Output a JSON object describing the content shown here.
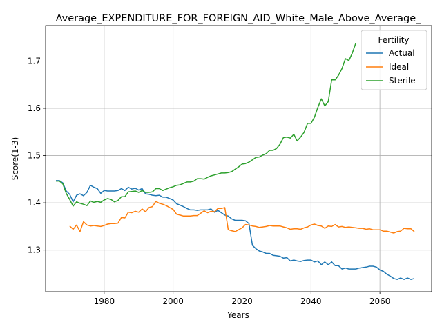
{
  "chart_data": {
    "type": "line",
    "title": "Average_EXPENDITURE_FOR_FOREIGN_AID_White_Male_Above_Average_",
    "xlabel": "Years",
    "ylabel": "Score(1-3)",
    "xlim": [
      1963,
      2075
    ],
    "ylim": [
      1.212,
      1.775
    ],
    "x_ticks": [
      1980,
      2000,
      2020,
      2040,
      2060
    ],
    "x_tick_labels": [
      "1980",
      "2000",
      "2020",
      "2040",
      "2060"
    ],
    "y_ticks": [
      1.3,
      1.4,
      1.5,
      1.6,
      1.7
    ],
    "y_tick_labels": [
      "1.3",
      "1.4",
      "1.5",
      "1.6",
      "1.7"
    ],
    "grid": true,
    "legend": {
      "title": "Fertility",
      "placement": "top-right"
    },
    "series": [
      {
        "name": "Actual",
        "color": "#1f77b4",
        "points": [
          [
            1966,
            1.447
          ],
          [
            1967,
            1.447
          ],
          [
            1968,
            1.442
          ],
          [
            1969,
            1.425
          ],
          [
            1970,
            1.418
          ],
          [
            1971,
            1.402
          ],
          [
            1972,
            1.416
          ],
          [
            1973,
            1.419
          ],
          [
            1974,
            1.415
          ],
          [
            1975,
            1.422
          ],
          [
            1976,
            1.437
          ],
          [
            1977,
            1.433
          ],
          [
            1978,
            1.43
          ],
          [
            1979,
            1.42
          ],
          [
            1980,
            1.426
          ],
          [
            1981,
            1.425
          ],
          [
            1982,
            1.425
          ],
          [
            1983,
            1.425
          ],
          [
            1984,
            1.426
          ],
          [
            1985,
            1.43
          ],
          [
            1986,
            1.426
          ],
          [
            1987,
            1.433
          ],
          [
            1988,
            1.429
          ],
          [
            1989,
            1.431
          ],
          [
            1990,
            1.427
          ],
          [
            1991,
            1.43
          ],
          [
            1992,
            1.419
          ],
          [
            1993,
            1.418
          ],
          [
            1994,
            1.416
          ],
          [
            1995,
            1.415
          ],
          [
            1996,
            1.416
          ],
          [
            1997,
            1.412
          ],
          [
            1998,
            1.412
          ],
          [
            1999,
            1.409
          ],
          [
            2000,
            1.406
          ],
          [
            2001,
            1.398
          ],
          [
            2002,
            1.395
          ],
          [
            2003,
            1.392
          ],
          [
            2004,
            1.388
          ],
          [
            2005,
            1.385
          ],
          [
            2006,
            1.385
          ],
          [
            2007,
            1.384
          ],
          [
            2008,
            1.385
          ],
          [
            2009,
            1.385
          ],
          [
            2010,
            1.385
          ],
          [
            2011,
            1.387
          ],
          [
            2012,
            1.38
          ],
          [
            2013,
            1.384
          ],
          [
            2014,
            1.379
          ],
          [
            2015,
            1.374
          ],
          [
            2016,
            1.372
          ],
          [
            2017,
            1.366
          ],
          [
            2018,
            1.363
          ],
          [
            2019,
            1.363
          ],
          [
            2020,
            1.363
          ],
          [
            2021,
            1.362
          ],
          [
            2022,
            1.356
          ],
          [
            2023,
            1.31
          ],
          [
            2024,
            1.303
          ],
          [
            2025,
            1.298
          ],
          [
            2026,
            1.296
          ],
          [
            2027,
            1.293
          ],
          [
            2028,
            1.293
          ],
          [
            2029,
            1.289
          ],
          [
            2030,
            1.288
          ],
          [
            2031,
            1.287
          ],
          [
            2032,
            1.283
          ],
          [
            2033,
            1.284
          ],
          [
            2034,
            1.277
          ],
          [
            2035,
            1.279
          ],
          [
            2036,
            1.277
          ],
          [
            2037,
            1.276
          ],
          [
            2038,
            1.278
          ],
          [
            2039,
            1.279
          ],
          [
            2040,
            1.279
          ],
          [
            2041,
            1.275
          ],
          [
            2042,
            1.277
          ],
          [
            2043,
            1.269
          ],
          [
            2044,
            1.275
          ],
          [
            2045,
            1.269
          ],
          [
            2046,
            1.275
          ],
          [
            2047,
            1.267
          ],
          [
            2048,
            1.267
          ],
          [
            2049,
            1.26
          ],
          [
            2050,
            1.262
          ],
          [
            2051,
            1.26
          ],
          [
            2052,
            1.26
          ],
          [
            2053,
            1.26
          ],
          [
            2054,
            1.262
          ],
          [
            2055,
            1.263
          ],
          [
            2056,
            1.264
          ],
          [
            2057,
            1.266
          ],
          [
            2058,
            1.266
          ],
          [
            2059,
            1.264
          ],
          [
            2060,
            1.258
          ],
          [
            2061,
            1.255
          ],
          [
            2062,
            1.249
          ],
          [
            2063,
            1.245
          ],
          [
            2064,
            1.24
          ],
          [
            2065,
            1.238
          ],
          [
            2066,
            1.241
          ],
          [
            2067,
            1.238
          ],
          [
            2068,
            1.241
          ],
          [
            2069,
            1.238
          ],
          [
            2070,
            1.24
          ]
        ]
      },
      {
        "name": "Ideal",
        "color": "#ff7f0e",
        "points": [
          [
            1970,
            1.351
          ],
          [
            1971,
            1.344
          ],
          [
            1972,
            1.353
          ],
          [
            1973,
            1.339
          ],
          [
            1974,
            1.36
          ],
          [
            1975,
            1.353
          ],
          [
            1976,
            1.351
          ],
          [
            1977,
            1.352
          ],
          [
            1978,
            1.351
          ],
          [
            1979,
            1.35
          ],
          [
            1980,
            1.352
          ],
          [
            1981,
            1.355
          ],
          [
            1982,
            1.356
          ],
          [
            1983,
            1.356
          ],
          [
            1984,
            1.357
          ],
          [
            1985,
            1.369
          ],
          [
            1986,
            1.368
          ],
          [
            1987,
            1.38
          ],
          [
            1988,
            1.379
          ],
          [
            1989,
            1.382
          ],
          [
            1990,
            1.38
          ],
          [
            1991,
            1.387
          ],
          [
            1992,
            1.381
          ],
          [
            1993,
            1.39
          ],
          [
            1994,
            1.392
          ],
          [
            1995,
            1.403
          ],
          [
            1996,
            1.399
          ],
          [
            1997,
            1.397
          ],
          [
            1998,
            1.394
          ],
          [
            1999,
            1.39
          ],
          [
            2000,
            1.386
          ],
          [
            2001,
            1.376
          ],
          [
            2002,
            1.374
          ],
          [
            2003,
            1.372
          ],
          [
            2004,
            1.372
          ],
          [
            2005,
            1.372
          ],
          [
            2006,
            1.373
          ],
          [
            2007,
            1.373
          ],
          [
            2008,
            1.378
          ],
          [
            2009,
            1.383
          ],
          [
            2010,
            1.379
          ],
          [
            2011,
            1.382
          ],
          [
            2012,
            1.381
          ],
          [
            2013,
            1.388
          ],
          [
            2014,
            1.388
          ],
          [
            2015,
            1.39
          ],
          [
            2016,
            1.343
          ],
          [
            2017,
            1.341
          ],
          [
            2018,
            1.339
          ],
          [
            2019,
            1.343
          ],
          [
            2020,
            1.347
          ],
          [
            2021,
            1.354
          ],
          [
            2022,
            1.353
          ],
          [
            2023,
            1.351
          ],
          [
            2024,
            1.35
          ],
          [
            2025,
            1.348
          ],
          [
            2026,
            1.349
          ],
          [
            2027,
            1.35
          ],
          [
            2028,
            1.352
          ],
          [
            2029,
            1.351
          ],
          [
            2030,
            1.351
          ],
          [
            2031,
            1.351
          ],
          [
            2032,
            1.349
          ],
          [
            2033,
            1.347
          ],
          [
            2034,
            1.344
          ],
          [
            2035,
            1.345
          ],
          [
            2036,
            1.345
          ],
          [
            2037,
            1.344
          ],
          [
            2038,
            1.347
          ],
          [
            2039,
            1.349
          ],
          [
            2040,
            1.353
          ],
          [
            2041,
            1.355
          ],
          [
            2042,
            1.352
          ],
          [
            2043,
            1.351
          ],
          [
            2044,
            1.346
          ],
          [
            2045,
            1.351
          ],
          [
            2046,
            1.35
          ],
          [
            2047,
            1.354
          ],
          [
            2048,
            1.349
          ],
          [
            2049,
            1.35
          ],
          [
            2050,
            1.348
          ],
          [
            2051,
            1.349
          ],
          [
            2052,
            1.348
          ],
          [
            2053,
            1.347
          ],
          [
            2054,
            1.346
          ],
          [
            2055,
            1.346
          ],
          [
            2056,
            1.344
          ],
          [
            2057,
            1.345
          ],
          [
            2058,
            1.343
          ],
          [
            2059,
            1.343
          ],
          [
            2060,
            1.343
          ],
          [
            2061,
            1.34
          ],
          [
            2062,
            1.34
          ],
          [
            2063,
            1.338
          ],
          [
            2064,
            1.336
          ],
          [
            2065,
            1.339
          ],
          [
            2066,
            1.34
          ],
          [
            2067,
            1.346
          ],
          [
            2068,
            1.345
          ],
          [
            2069,
            1.345
          ],
          [
            2070,
            1.339
          ]
        ]
      },
      {
        "name": "Sterile",
        "color": "#2ca02c",
        "points": [
          [
            1966,
            1.446
          ],
          [
            1967,
            1.446
          ],
          [
            1968,
            1.44
          ],
          [
            1969,
            1.42
          ],
          [
            1970,
            1.407
          ],
          [
            1971,
            1.393
          ],
          [
            1972,
            1.402
          ],
          [
            1973,
            1.399
          ],
          [
            1974,
            1.397
          ],
          [
            1975,
            1.394
          ],
          [
            1976,
            1.404
          ],
          [
            1977,
            1.401
          ],
          [
            1978,
            1.403
          ],
          [
            1979,
            1.401
          ],
          [
            1980,
            1.406
          ],
          [
            1981,
            1.409
          ],
          [
            1982,
            1.407
          ],
          [
            1983,
            1.402
          ],
          [
            1984,
            1.405
          ],
          [
            1985,
            1.413
          ],
          [
            1986,
            1.413
          ],
          [
            1987,
            1.423
          ],
          [
            1988,
            1.424
          ],
          [
            1989,
            1.425
          ],
          [
            1990,
            1.422
          ],
          [
            1991,
            1.426
          ],
          [
            1992,
            1.422
          ],
          [
            1993,
            1.422
          ],
          [
            1994,
            1.423
          ],
          [
            1995,
            1.43
          ],
          [
            1996,
            1.43
          ],
          [
            1997,
            1.426
          ],
          [
            1998,
            1.429
          ],
          [
            1999,
            1.432
          ],
          [
            2000,
            1.434
          ],
          [
            2001,
            1.437
          ],
          [
            2002,
            1.438
          ],
          [
            2003,
            1.441
          ],
          [
            2004,
            1.444
          ],
          [
            2005,
            1.444
          ],
          [
            2006,
            1.446
          ],
          [
            2007,
            1.451
          ],
          [
            2008,
            1.451
          ],
          [
            2009,
            1.45
          ],
          [
            2010,
            1.454
          ],
          [
            2011,
            1.457
          ],
          [
            2012,
            1.459
          ],
          [
            2013,
            1.461
          ],
          [
            2014,
            1.463
          ],
          [
            2015,
            1.463
          ],
          [
            2016,
            1.464
          ],
          [
            2017,
            1.466
          ],
          [
            2018,
            1.471
          ],
          [
            2019,
            1.476
          ],
          [
            2020,
            1.482
          ],
          [
            2021,
            1.483
          ],
          [
            2022,
            1.486
          ],
          [
            2023,
            1.491
          ],
          [
            2024,
            1.496
          ],
          [
            2025,
            1.497
          ],
          [
            2026,
            1.501
          ],
          [
            2027,
            1.504
          ],
          [
            2028,
            1.511
          ],
          [
            2029,
            1.511
          ],
          [
            2030,
            1.515
          ],
          [
            2031,
            1.524
          ],
          [
            2032,
            1.538
          ],
          [
            2033,
            1.539
          ],
          [
            2034,
            1.537
          ],
          [
            2035,
            1.545
          ],
          [
            2036,
            1.531
          ],
          [
            2037,
            1.539
          ],
          [
            2038,
            1.549
          ],
          [
            2039,
            1.568
          ],
          [
            2040,
            1.568
          ],
          [
            2041,
            1.581
          ],
          [
            2042,
            1.602
          ],
          [
            2043,
            1.62
          ],
          [
            2044,
            1.605
          ],
          [
            2045,
            1.614
          ],
          [
            2046,
            1.66
          ],
          [
            2047,
            1.66
          ],
          [
            2048,
            1.67
          ],
          [
            2049,
            1.684
          ],
          [
            2050,
            1.705
          ],
          [
            2051,
            1.701
          ],
          [
            2052,
            1.717
          ],
          [
            2053,
            1.738
          ]
        ]
      }
    ]
  }
}
